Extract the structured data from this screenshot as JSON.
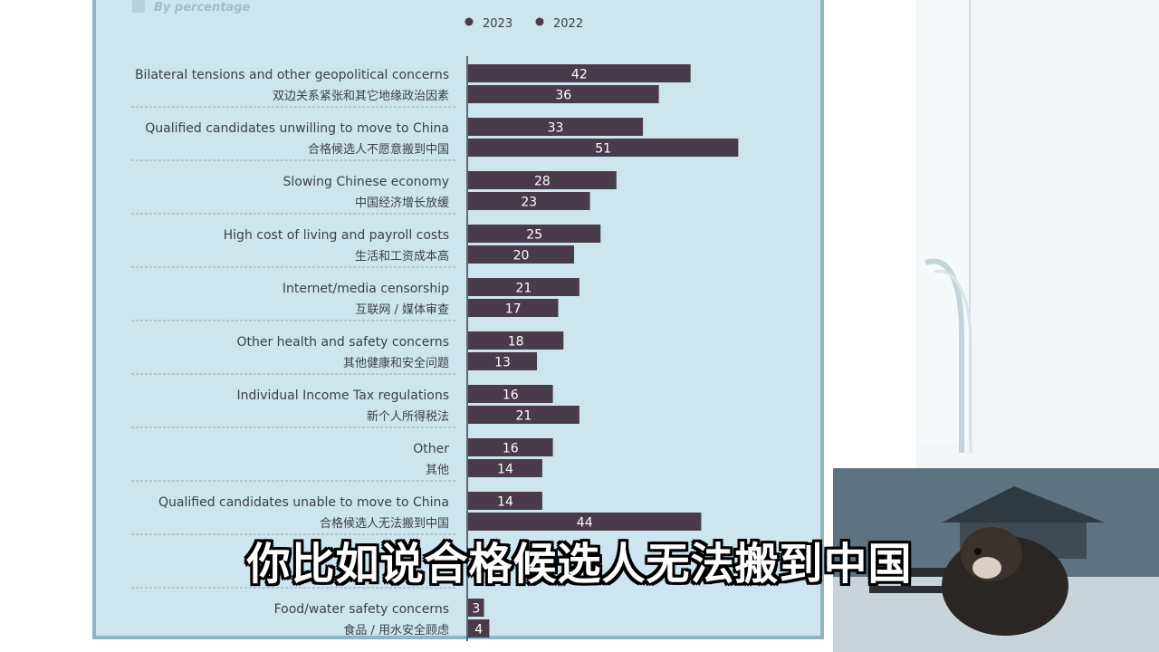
{
  "header": {
    "subtitle_hint": "By percentage"
  },
  "subtitle": "你比如说合格候选人无法搬到中国",
  "colors": {
    "bar": "#4a3b4a",
    "panel": "#cce5ef",
    "accent_border": "#8fb4c5"
  },
  "chart_data": {
    "type": "bar",
    "orientation": "horizontal",
    "legend": [
      "2023",
      "2022"
    ],
    "legend_position": "top-right",
    "categories": [
      "Bilateral tensions and other geopolitical concerns",
      "Qualified candidates unwilling to move to China",
      "Slowing Chinese economy",
      "High cost of living and payroll costs",
      "Internet/media censorship",
      "Other health and safety concerns",
      "Individual Income Tax regulations",
      "Other",
      "Qualified candidates unable to move to China",
      "",
      "Food/water safety concerns"
    ],
    "categories_cn": [
      "双边关系紧张和其它地缘政治因素",
      "合格候选人不愿意搬到中国",
      "中国经济增长放缓",
      "生活和工资成本高",
      "互联网 / 媒体审查",
      "其他健康和安全问题",
      "新个人所得税法",
      "其他",
      "合格候选人无法搬到中国",
      "",
      "食品 / 用水安全顾虑"
    ],
    "series": [
      {
        "name": "2023",
        "values": [
          42,
          33,
          28,
          25,
          21,
          18,
          16,
          16,
          14,
          null,
          3
        ]
      },
      {
        "name": "2022",
        "values": [
          36,
          51,
          23,
          20,
          17,
          13,
          21,
          14,
          44,
          null,
          4
        ]
      }
    ],
    "xlim": [
      0,
      51
    ],
    "grid": false
  }
}
